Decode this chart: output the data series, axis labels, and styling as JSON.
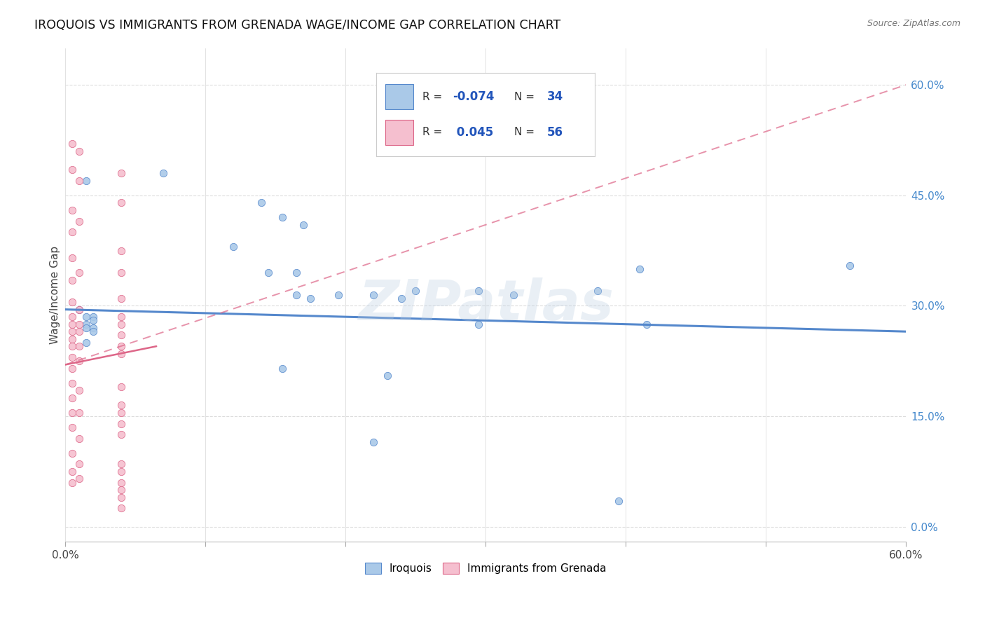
{
  "title": "IROQUOIS VS IMMIGRANTS FROM GRENADA WAGE/INCOME GAP CORRELATION CHART",
  "source": "Source: ZipAtlas.com",
  "ylabel": "Wage/Income Gap",
  "watermark": "ZIPatlas",
  "legend_blue_R": "-0.074",
  "legend_blue_N": "34",
  "legend_pink_R": "0.045",
  "legend_pink_N": "56",
  "legend_blue_label": "Iroquois",
  "legend_pink_label": "Immigrants from Grenada",
  "xlim": [
    0.0,
    0.6
  ],
  "ylim": [
    -0.02,
    0.65
  ],
  "blue_scatter_x": [
    0.07,
    0.14,
    0.155,
    0.17,
    0.12,
    0.145,
    0.165,
    0.175,
    0.01,
    0.015,
    0.015,
    0.015,
    0.02,
    0.02,
    0.02,
    0.02,
    0.165,
    0.195,
    0.22,
    0.24,
    0.25,
    0.295,
    0.295,
    0.32,
    0.38,
    0.41,
    0.415,
    0.155,
    0.22,
    0.23,
    0.015,
    0.015,
    0.395,
    0.56
  ],
  "blue_scatter_y": [
    0.48,
    0.44,
    0.42,
    0.41,
    0.38,
    0.345,
    0.345,
    0.31,
    0.295,
    0.285,
    0.275,
    0.27,
    0.285,
    0.28,
    0.27,
    0.265,
    0.315,
    0.315,
    0.315,
    0.31,
    0.32,
    0.32,
    0.275,
    0.315,
    0.32,
    0.35,
    0.275,
    0.215,
    0.115,
    0.205,
    0.47,
    0.25,
    0.035,
    0.355
  ],
  "pink_scatter_x": [
    0.005,
    0.005,
    0.005,
    0.005,
    0.005,
    0.005,
    0.005,
    0.005,
    0.005,
    0.005,
    0.005,
    0.005,
    0.005,
    0.005,
    0.005,
    0.005,
    0.005,
    0.005,
    0.005,
    0.005,
    0.005,
    0.01,
    0.01,
    0.01,
    0.01,
    0.01,
    0.01,
    0.01,
    0.01,
    0.01,
    0.01,
    0.01,
    0.01,
    0.01,
    0.01,
    0.04,
    0.04,
    0.04,
    0.04,
    0.04,
    0.04,
    0.04,
    0.04,
    0.04,
    0.04,
    0.04,
    0.04,
    0.04,
    0.04,
    0.04,
    0.04,
    0.04,
    0.04,
    0.04,
    0.04,
    0.04
  ],
  "pink_scatter_y": [
    0.52,
    0.485,
    0.43,
    0.4,
    0.365,
    0.335,
    0.305,
    0.285,
    0.275,
    0.265,
    0.255,
    0.245,
    0.23,
    0.215,
    0.195,
    0.175,
    0.155,
    0.135,
    0.1,
    0.075,
    0.06,
    0.51,
    0.47,
    0.415,
    0.345,
    0.295,
    0.275,
    0.265,
    0.245,
    0.225,
    0.185,
    0.155,
    0.12,
    0.085,
    0.065,
    0.48,
    0.44,
    0.375,
    0.345,
    0.31,
    0.285,
    0.275,
    0.26,
    0.245,
    0.235,
    0.19,
    0.165,
    0.155,
    0.14,
    0.125,
    0.085,
    0.075,
    0.06,
    0.05,
    0.04,
    0.025
  ],
  "blue_line_x": [
    0.0,
    0.6
  ],
  "blue_line_y": [
    0.295,
    0.265
  ],
  "pink_line_x": [
    0.0,
    0.6
  ],
  "pink_line_y": [
    0.22,
    0.6
  ],
  "pink_solid_line_x": [
    0.0,
    0.065
  ],
  "pink_solid_line_y": [
    0.22,
    0.245
  ],
  "background_color": "#ffffff",
  "scatter_size": 55,
  "blue_fill": "#aac9e8",
  "blue_edge": "#5588cc",
  "pink_fill": "#f5bfcf",
  "pink_edge": "#dd6688",
  "grid_color": "#dddddd",
  "title_color": "#111111",
  "source_color": "#777777",
  "wm_r": 185,
  "wm_g": 205,
  "wm_b": 225,
  "wm_alpha": 0.3,
  "legend_val_color": "#2255bb",
  "right_tick_color": "#4488cc",
  "ytick_vals": [
    0.0,
    0.15,
    0.3,
    0.45,
    0.6
  ],
  "ytick_labels": [
    "0.0%",
    "15.0%",
    "30.0%",
    "45.0%",
    "60.0%"
  ],
  "xtick_vals": [
    0.0,
    0.1,
    0.2,
    0.3,
    0.4,
    0.5,
    0.6
  ],
  "xtick_labels": [
    "0.0%",
    "",
    "",
    "",
    "",
    "",
    "60.0%"
  ]
}
